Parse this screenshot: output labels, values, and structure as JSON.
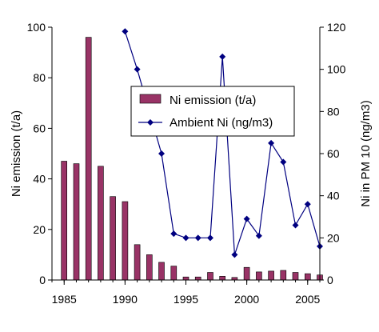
{
  "chart_data": {
    "type": "bar+line",
    "x_axis": {
      "min": 1984,
      "max": 2006,
      "ticks": [
        1985,
        1990,
        1995,
        2000,
        2005
      ],
      "tick_labels": [
        "1985",
        "1990",
        "1995",
        "2000",
        "2005"
      ]
    },
    "y_left": {
      "label": "Ni emission (t/a)",
      "min": 0,
      "max": 100,
      "ticks": [
        0,
        20,
        40,
        60,
        80,
        100
      ],
      "tick_labels": [
        "0",
        "20",
        "40",
        "60",
        "80",
        "100"
      ]
    },
    "y_right": {
      "label": "Ni in PM 10 (ng/m3)",
      "min": 0,
      "max": 120,
      "ticks": [
        0,
        20,
        40,
        60,
        80,
        100,
        120
      ],
      "tick_labels": [
        "0",
        "20",
        "40",
        "60",
        "80",
        "100",
        "120"
      ]
    },
    "series": [
      {
        "name": "Ni emission (t/a)",
        "kind": "bar",
        "axis": "left",
        "color": "#993366",
        "x": [
          1985,
          1986,
          1987,
          1988,
          1989,
          1990,
          1991,
          1992,
          1993,
          1994,
          1995,
          1996,
          1997,
          1998,
          1999,
          2000,
          2001,
          2002,
          2003,
          2004,
          2005,
          2006
        ],
        "values": [
          47,
          46,
          96,
          45,
          33,
          31,
          14,
          10,
          7,
          5.5,
          1.2,
          1.2,
          3,
          1.5,
          1,
          5,
          3.2,
          3.5,
          3.8,
          3,
          2.5,
          2
        ]
      },
      {
        "name": "Ambient Ni (ng/m3)",
        "kind": "line",
        "axis": "right",
        "color": "#000080",
        "x": [
          1990,
          1991,
          1993,
          1994,
          1995,
          1996,
          1997,
          1998,
          1999,
          2000,
          2001,
          2002,
          2003,
          2004,
          2005,
          2006
        ],
        "values": [
          118,
          100,
          60,
          22,
          20,
          20,
          20,
          106,
          12,
          29,
          21,
          65,
          56,
          26,
          36,
          16
        ]
      }
    ],
    "legend": {
      "placement": "center"
    },
    "grid": false
  }
}
